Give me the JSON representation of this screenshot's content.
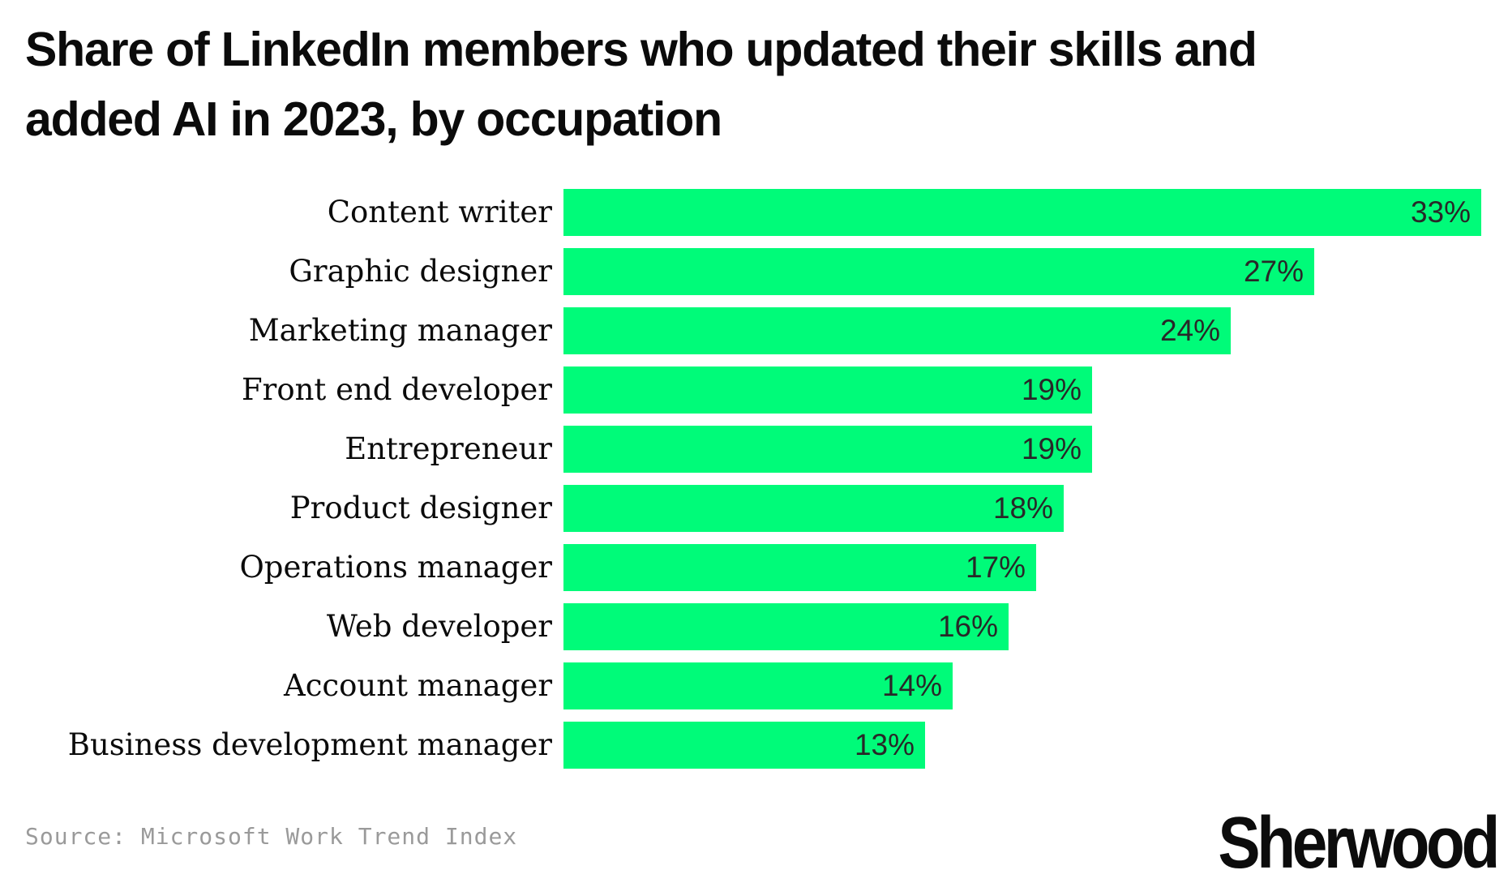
{
  "title": {
    "line1": "Share of LinkedIn members who updated their skills and",
    "line2": "added AI in 2023, by occupation"
  },
  "source": {
    "text": "Source: Microsoft Work Trend Index"
  },
  "logo": {
    "text": "Sherwood"
  },
  "colors": {
    "bar_green": "#00fb79",
    "value_label": "#282828",
    "category_label": "#0b0b0b",
    "title_text": "#0b0b0b",
    "source_text": "#9a9a9a",
    "logo_text": "#0c0c0c",
    "background": "#ffffff"
  },
  "chart_data": {
    "type": "bar",
    "orientation": "horizontal",
    "title": "Share of LinkedIn members who updated their skills and added AI in 2023, by occupation",
    "categories": [
      "Content writer",
      "Graphic designer",
      "Marketing manager",
      "Front end developer",
      "Entrepreneur",
      "Product designer",
      "Operations manager",
      "Web developer",
      "Account manager",
      "Business development manager"
    ],
    "values": [
      33,
      27,
      24,
      19,
      19,
      18,
      17,
      16,
      14,
      13
    ],
    "unit": "%",
    "value_labels": [
      "33%",
      "27%",
      "24%",
      "19%",
      "19%",
      "18%",
      "17%",
      "16%",
      "14%",
      "13%"
    ],
    "xlabel": "",
    "ylabel": "",
    "xlim": [
      0,
      34
    ],
    "grid": false,
    "legend": false,
    "value_label_position": "inside-end"
  }
}
